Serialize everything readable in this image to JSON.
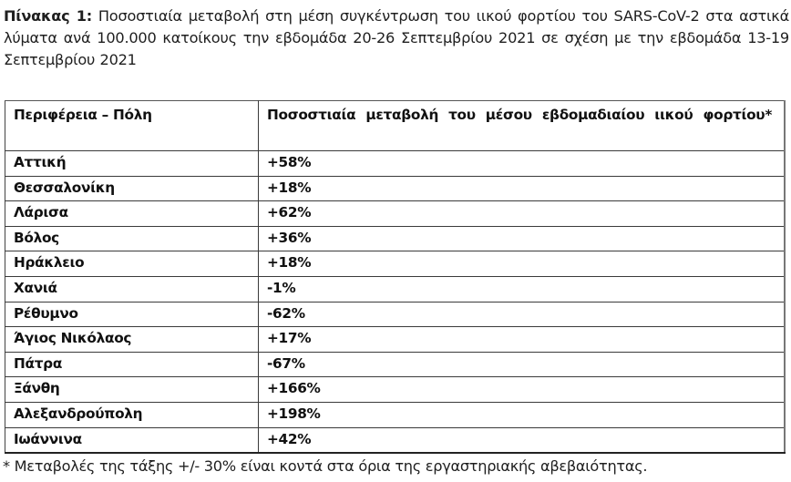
{
  "caption": {
    "label": "Πίνακας 1:",
    "text": " Ποσοστιαία μεταβολή στη μέση συγκέντρωση του ιικού φορτίου του SARS-CoV-2 στα αστικά λύματα ανά 100.000 κατοίκους την εβδομάδα 20-26 Σεπτεμβρίου 2021 σε σχέση με την εβδομάδα 13-19 Σεπτεμβρίου 2021"
  },
  "table": {
    "headers": [
      "Περιφέρεια – Πόλη",
      "Ποσοστιαία μεταβολή του μέσου εβδομαδιαίου ιικού φορτίου*"
    ],
    "rows": [
      {
        "city": "Αττική",
        "change": "+58%"
      },
      {
        "city": "Θεσσαλονίκη",
        "change": "+18%"
      },
      {
        "city": "Λάρισα",
        "change": "+62%"
      },
      {
        "city": "Βόλος",
        "change": "+36%"
      },
      {
        "city": "Ηράκλειο",
        "change": "+18%"
      },
      {
        "city": "Χανιά",
        "change": "-1%"
      },
      {
        "city": "Ρέθυμνο",
        "change": "-62%"
      },
      {
        "city": "Άγιος Νικόλαος",
        "change": "+17%"
      },
      {
        "city": "Πάτρα",
        "change": "-67%"
      },
      {
        "city": "Ξάνθη",
        "change": "+166%"
      },
      {
        "city": "Αλεξανδρούπολη",
        "change": "+198%"
      },
      {
        "city": "Ιωάννινα",
        "change": "+42%"
      }
    ]
  },
  "footnote": "* Μεταβολές της τάξης +/- 30% είναι κοντά στα όρια της εργαστηριακής αβεβαιότητας."
}
